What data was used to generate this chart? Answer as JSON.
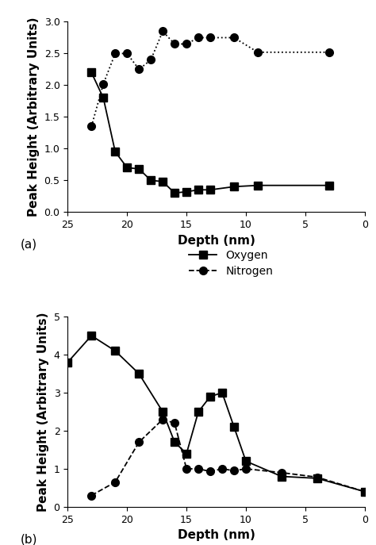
{
  "panel_a": {
    "oxygen_x": [
      23,
      22,
      21,
      20,
      19,
      18,
      17,
      16,
      15,
      14,
      13,
      11,
      9,
      3
    ],
    "oxygen_y": [
      2.2,
      1.8,
      0.95,
      0.7,
      0.68,
      0.5,
      0.48,
      0.3,
      0.32,
      0.35,
      0.35,
      0.4,
      0.42,
      0.42
    ],
    "nitrogen_x": [
      23,
      22,
      21,
      20,
      19,
      18,
      17,
      16,
      15,
      14,
      13,
      11,
      9,
      3
    ],
    "nitrogen_y": [
      1.35,
      2.02,
      2.5,
      2.5,
      2.25,
      2.4,
      2.85,
      2.65,
      2.65,
      2.75,
      2.75,
      2.75,
      2.52,
      2.52
    ],
    "xlim": [
      25,
      0
    ],
    "ylim": [
      0.0,
      3.0
    ],
    "yticks": [
      0.0,
      0.5,
      1.0,
      1.5,
      2.0,
      2.5,
      3.0
    ],
    "xticks": [
      25,
      20,
      15,
      10,
      5,
      0
    ],
    "ylabel": "Peak Height (Arbitrary Units)",
    "xlabel": "Depth (nm)",
    "label": "(a)"
  },
  "panel_b": {
    "oxygen_x": [
      25,
      23,
      21,
      19,
      17,
      16,
      15,
      14,
      13,
      12,
      11,
      10,
      7,
      4,
      0
    ],
    "oxygen_y": [
      3.8,
      4.5,
      4.1,
      3.5,
      2.5,
      1.7,
      1.4,
      2.5,
      2.9,
      3.0,
      2.1,
      1.2,
      0.8,
      0.75,
      0.4
    ],
    "nitrogen_x": [
      23,
      21,
      19,
      17,
      16,
      15,
      14,
      13,
      12,
      11,
      10,
      7,
      4,
      0
    ],
    "nitrogen_y": [
      0.3,
      0.65,
      1.7,
      2.3,
      2.2,
      1.0,
      1.0,
      0.93,
      1.0,
      0.95,
      1.0,
      0.9,
      0.78,
      0.4
    ],
    "xlim": [
      25,
      0
    ],
    "ylim": [
      0,
      5
    ],
    "yticks": [
      0,
      1,
      2,
      3,
      4,
      5
    ],
    "xticks": [
      25,
      20,
      15,
      10,
      5,
      0
    ],
    "ylabel": "Peak Height (Arbitrary Units)",
    "xlabel": "Depth (nm)",
    "label": "(b)"
  },
  "oxygen_label": "Oxygen",
  "nitrogen_label": "Nitrogen",
  "line_color": "#000000",
  "marker_square": "s",
  "marker_circle": "o",
  "oxygen_linestyle": "-",
  "nitrogen_linestyle_a": ":",
  "nitrogen_linestyle_b": "--",
  "markersize": 7,
  "linewidth": 1.3,
  "fontsize_axis_label": 11,
  "fontsize_tick": 9,
  "fontsize_legend": 10,
  "background_color": "#ffffff"
}
